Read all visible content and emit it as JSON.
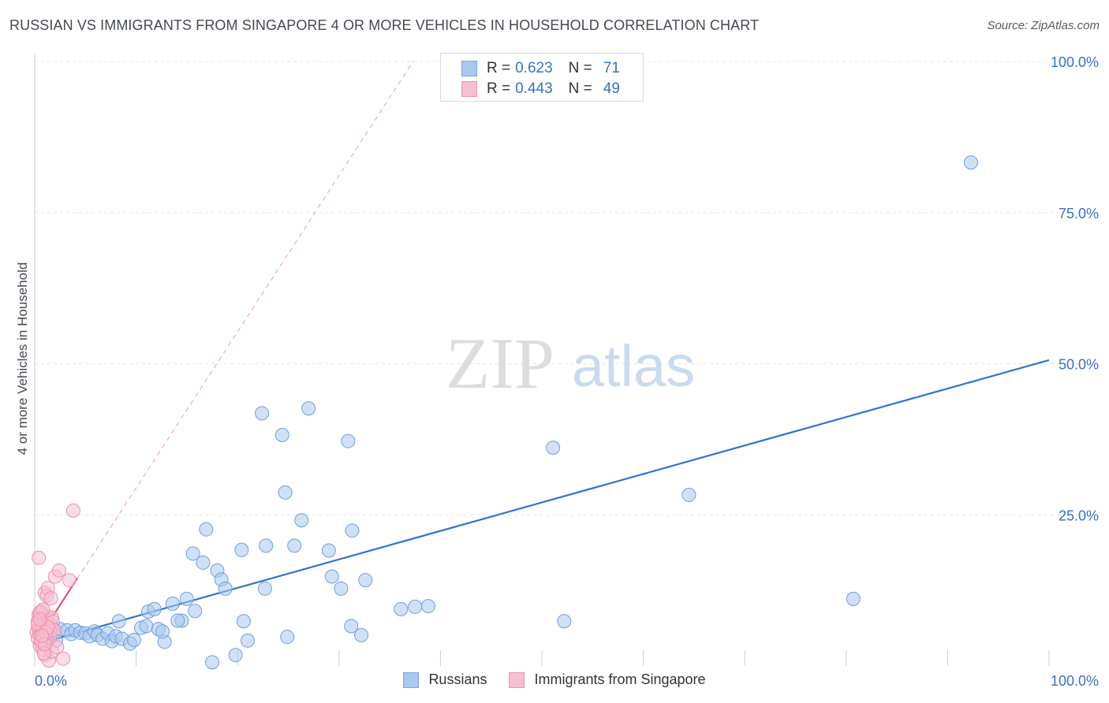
{
  "title": "RUSSIAN VS IMMIGRANTS FROM SINGAPORE 4 OR MORE VEHICLES IN HOUSEHOLD CORRELATION CHART",
  "source": "Source: ZipAtlas.com",
  "watermark": {
    "zip": "ZIP",
    "atlas": "atlas"
  },
  "legend": {
    "rows": [
      {
        "r_label": "R =",
        "r_value": "0.623",
        "n_label": "N =",
        "n_value": "71",
        "color": "#a9c8f0",
        "border": "#7aa6e0"
      },
      {
        "r_label": "R =",
        "r_value": "0.443",
        "n_label": "N =",
        "n_value": "49",
        "color": "#f7bfd0",
        "border": "#ee93b1"
      }
    ]
  },
  "bottom_legend": [
    {
      "label": "Russians",
      "color": "#a9c8f0",
      "border": "#7aa6e0"
    },
    {
      "label": "Immigrants from Singapore",
      "color": "#f7bfd0",
      "border": "#ee93b1"
    }
  ],
  "chart_data": {
    "type": "scatter",
    "title": "RUSSIAN VS IMMIGRANTS FROM SINGAPORE 4 OR MORE VEHICLES IN HOUSEHOLD CORRELATION CHART",
    "xlabel": "",
    "ylabel": "4 or more Vehicles in Household",
    "xlim": [
      0,
      100
    ],
    "ylim": [
      0,
      100
    ],
    "x_tick_labels": [
      "0.0%",
      "100.0%"
    ],
    "y_tick_labels": [
      {
        "value": 25,
        "label": "25.0%"
      },
      {
        "value": 50,
        "label": "50.0%"
      },
      {
        "value": 75,
        "label": "75.0%"
      },
      {
        "value": 100,
        "label": "100.0%"
      }
    ],
    "series": [
      {
        "name": "Russians",
        "color": "#a9c8f0",
        "stroke": "#6f9fdc",
        "trend_color": "#2f73d0",
        "trend": {
          "x": [
            0,
            100
          ],
          "y": [
            3.5,
            50.6
          ]
        },
        "points": [
          [
            0.6,
            7.2
          ],
          [
            0.9,
            6.6
          ],
          [
            1.2,
            7.8
          ],
          [
            1.5,
            5.8
          ],
          [
            1.8,
            6.3
          ],
          [
            2.1,
            4.2
          ],
          [
            2.5,
            6.1
          ],
          [
            3.2,
            5.9
          ],
          [
            3.6,
            5.3
          ],
          [
            4.0,
            5.9
          ],
          [
            4.5,
            5.5
          ],
          [
            5.0,
            5.4
          ],
          [
            5.4,
            4.9
          ],
          [
            5.9,
            5.7
          ],
          [
            6.2,
            5.1
          ],
          [
            6.7,
            4.5
          ],
          [
            7.2,
            5.4
          ],
          [
            7.6,
            4.1
          ],
          [
            8.0,
            4.9
          ],
          [
            8.3,
            7.4
          ],
          [
            8.6,
            4.5
          ],
          [
            9.4,
            3.7
          ],
          [
            9.8,
            4.3
          ],
          [
            10.5,
            6.3
          ],
          [
            11.0,
            6.6
          ],
          [
            11.2,
            9.0
          ],
          [
            11.8,
            9.4
          ],
          [
            12.2,
            6.1
          ],
          [
            12.8,
            4.0
          ],
          [
            12.6,
            5.7
          ],
          [
            13.6,
            10.3
          ],
          [
            14.5,
            7.5
          ],
          [
            14.1,
            7.5
          ],
          [
            15.0,
            11.1
          ],
          [
            15.8,
            9.1
          ],
          [
            15.6,
            18.6
          ],
          [
            16.6,
            17.1
          ],
          [
            16.9,
            22.6
          ],
          [
            18.0,
            15.8
          ],
          [
            18.4,
            14.3
          ],
          [
            18.8,
            12.8
          ],
          [
            17.5,
            0.6
          ],
          [
            19.8,
            1.8
          ],
          [
            20.4,
            19.2
          ],
          [
            20.6,
            7.4
          ],
          [
            21.0,
            4.2
          ],
          [
            22.4,
            41.8
          ],
          [
            22.8,
            19.9
          ],
          [
            22.7,
            12.8
          ],
          [
            24.4,
            38.2
          ],
          [
            24.7,
            28.7
          ],
          [
            24.9,
            4.8
          ],
          [
            25.6,
            19.9
          ],
          [
            26.3,
            24.1
          ],
          [
            27.0,
            42.6
          ],
          [
            29.0,
            19.1
          ],
          [
            29.3,
            14.8
          ],
          [
            30.2,
            12.8
          ],
          [
            30.9,
            37.2
          ],
          [
            31.2,
            6.6
          ],
          [
            31.3,
            22.4
          ],
          [
            32.2,
            5.1
          ],
          [
            32.6,
            14.2
          ],
          [
            36.1,
            9.4
          ],
          [
            37.5,
            9.8
          ],
          [
            38.8,
            9.9
          ],
          [
            51.1,
            36.1
          ],
          [
            52.2,
            7.4
          ],
          [
            64.5,
            28.3
          ],
          [
            80.7,
            11.1
          ],
          [
            92.3,
            83.3
          ]
        ]
      },
      {
        "name": "Immigrants from Singapore",
        "color": "#f7bfd0",
        "stroke": "#ec8fad",
        "trend_color": "#e84d83",
        "trend": {
          "x": [
            0,
            4.2
          ],
          "y": [
            3.6,
            14.5
          ]
        },
        "trend_extended": {
          "x": [
            0,
            37.3
          ],
          "y": [
            3.6,
            100
          ]
        },
        "points": [
          [
            0.2,
            5.6
          ],
          [
            0.3,
            7.4
          ],
          [
            0.3,
            4.6
          ],
          [
            0.4,
            8.5
          ],
          [
            0.4,
            6.1
          ],
          [
            0.5,
            5.2
          ],
          [
            0.5,
            3.4
          ],
          [
            0.6,
            6.8
          ],
          [
            0.6,
            9.0
          ],
          [
            0.7,
            5.8
          ],
          [
            0.7,
            4.2
          ],
          [
            0.8,
            6.3
          ],
          [
            0.8,
            2.7
          ],
          [
            0.9,
            7.8
          ],
          [
            0.9,
            5.1
          ],
          [
            1.0,
            1.8
          ],
          [
            1.0,
            12.1
          ],
          [
            1.1,
            6.6
          ],
          [
            1.1,
            3.9
          ],
          [
            1.2,
            8.2
          ],
          [
            1.2,
            11.6
          ],
          [
            1.3,
            5.4
          ],
          [
            1.3,
            12.9
          ],
          [
            1.4,
            7.1
          ],
          [
            1.4,
            0.9
          ],
          [
            1.5,
            6.0
          ],
          [
            1.5,
            4.7
          ],
          [
            1.6,
            11.2
          ],
          [
            1.7,
            8.0
          ],
          [
            1.7,
            2.4
          ],
          [
            1.8,
            7.3
          ],
          [
            1.9,
            5.9
          ],
          [
            2.0,
            14.8
          ],
          [
            2.2,
            3.1
          ],
          [
            2.4,
            15.8
          ],
          [
            0.3,
            6.9
          ],
          [
            0.4,
            17.9
          ],
          [
            0.5,
            8.8
          ],
          [
            0.6,
            4.1
          ],
          [
            0.8,
            9.3
          ],
          [
            0.9,
            2.1
          ],
          [
            1.1,
            5.5
          ],
          [
            1.3,
            6.4
          ],
          [
            1.0,
            3.6
          ],
          [
            0.7,
            5.0
          ],
          [
            2.8,
            1.2
          ],
          [
            3.4,
            14.2
          ],
          [
            3.8,
            25.7
          ],
          [
            0.5,
            7.7
          ]
        ]
      }
    ]
  }
}
